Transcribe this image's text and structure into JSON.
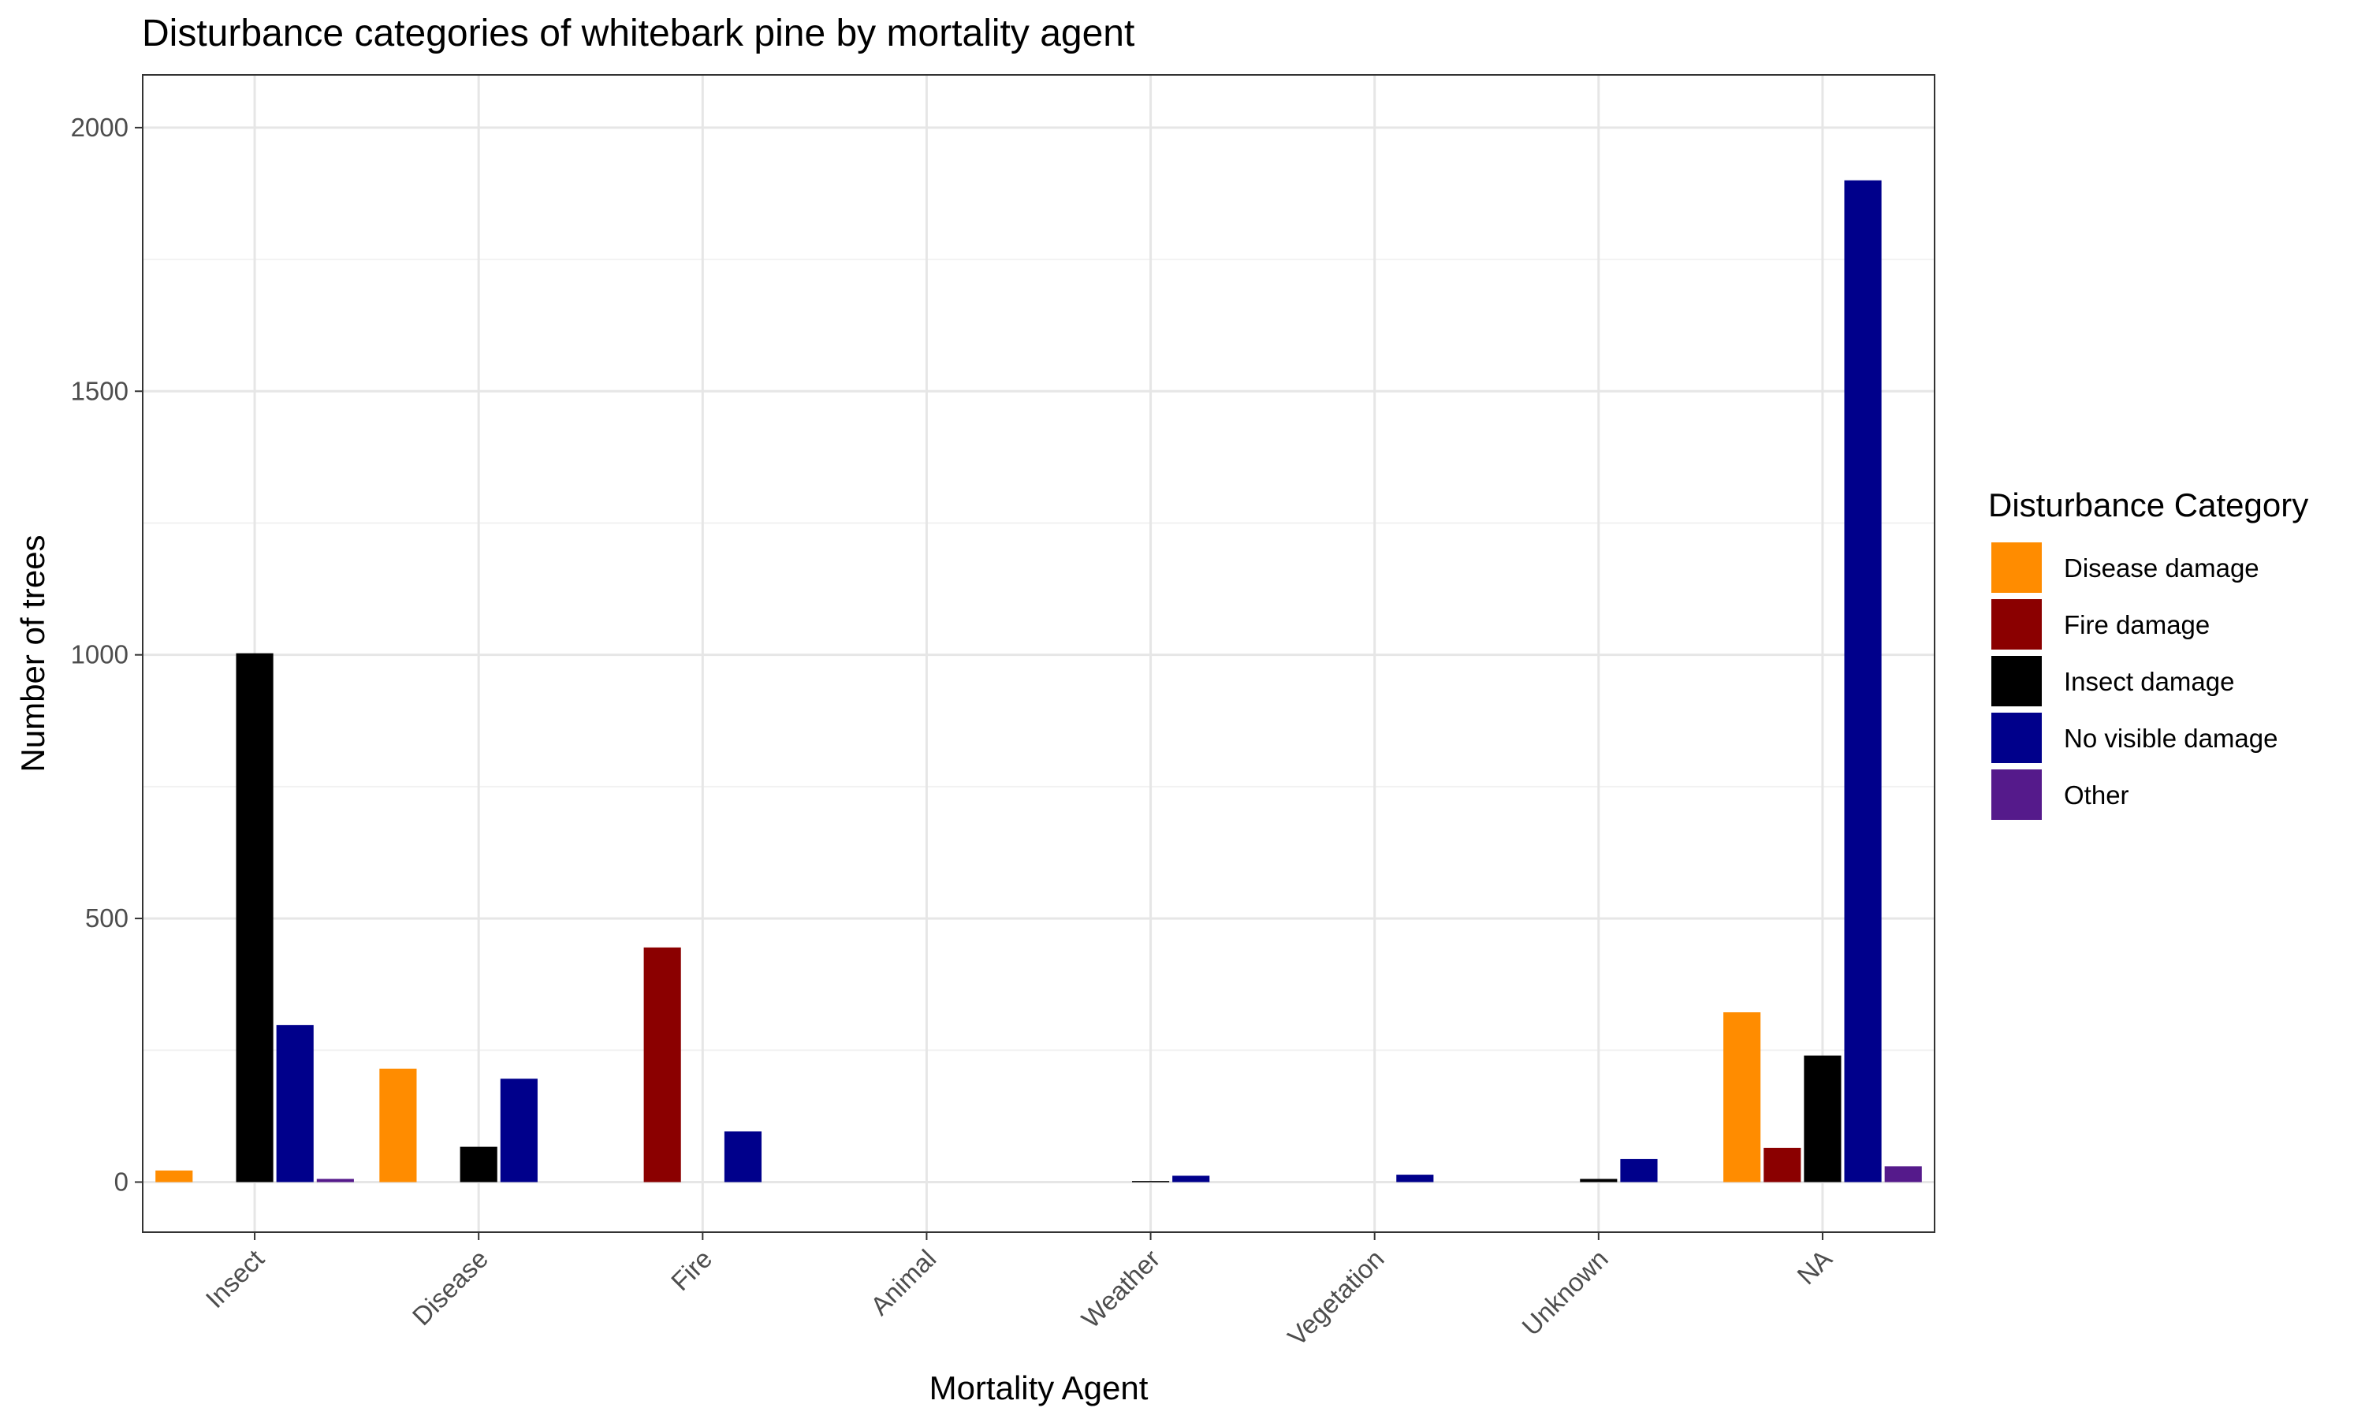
{
  "chart_data": {
    "type": "bar",
    "title": "Disturbance categories of whitebark pine by mortality agent",
    "xlabel": "Mortality Agent",
    "ylabel": "Number of trees",
    "ylim": [
      -95,
      2100
    ],
    "yticks": [
      0,
      500,
      1000,
      1500,
      2000
    ],
    "grid": true,
    "legend": {
      "title": "Disturbance Category",
      "position": "right"
    },
    "categories": [
      "Insect",
      "Disease",
      "Fire",
      "Animal",
      "Weather",
      "Vegetation",
      "Unknown",
      "NA"
    ],
    "series": [
      {
        "name": "Disease damage",
        "color": "#FF8C00",
        "values": [
          22,
          215,
          0,
          0,
          0,
          0,
          0,
          322
        ]
      },
      {
        "name": "Fire damage",
        "color": "#8B0000",
        "values": [
          0,
          0,
          445,
          0,
          0,
          0,
          0,
          65
        ]
      },
      {
        "name": "Insect damage",
        "color": "#000000",
        "values": [
          1003,
          67,
          0,
          0,
          2,
          0,
          6,
          240
        ]
      },
      {
        "name": "No visible damage",
        "color": "#00008B",
        "values": [
          298,
          196,
          96,
          0,
          12,
          14,
          44,
          1900
        ]
      },
      {
        "name": "Other",
        "color": "#551A8B",
        "values": [
          6,
          0,
          0,
          0,
          0,
          0,
          0,
          30
        ]
      }
    ]
  }
}
